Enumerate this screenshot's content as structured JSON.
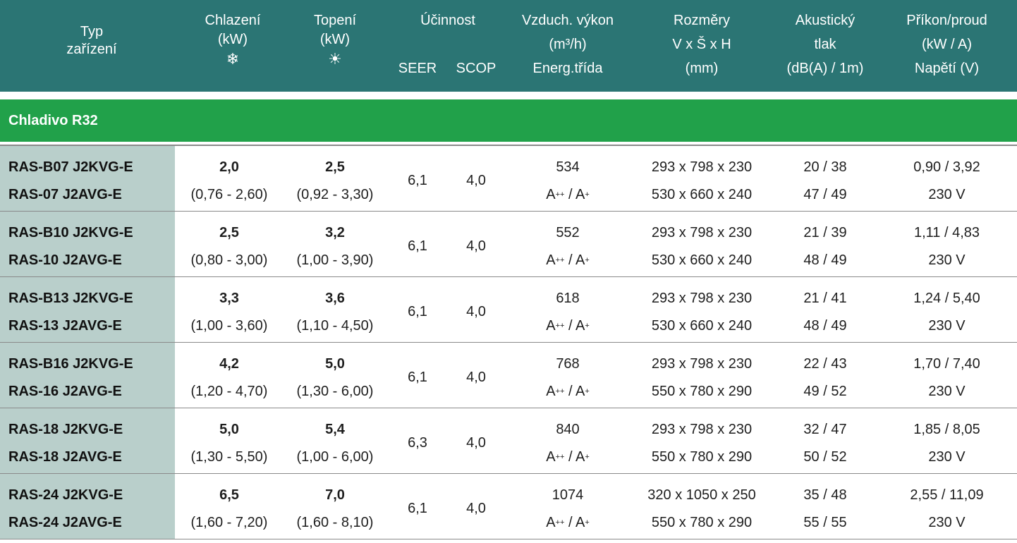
{
  "header": {
    "typ": [
      "Typ",
      "zařízení"
    ],
    "chlazeni": [
      "Chlazení",
      "(kW)"
    ],
    "topeni": [
      "Topení",
      "(kW)"
    ],
    "ucinnost": "Účinnost",
    "seer": "SEER",
    "scop": "SCOP",
    "vzduch": [
      "Vzduch. výkon",
      "(m³/h)",
      "Energ.třída"
    ],
    "rozmery": [
      "Rozměry",
      "V x Š x H",
      "(mm)"
    ],
    "akusticky": [
      "Akustický",
      "tlak",
      "(dB(A) / 1m)"
    ],
    "prikon": [
      "Příkon/proud",
      "(kW / A)",
      "Napětí (V)"
    ],
    "icons": {
      "cooling": "snowflake-icon",
      "heating": "sun-icon"
    }
  },
  "section": {
    "label": "Chladivo R32"
  },
  "energy_class": {
    "a": "A",
    "a_sup": "++",
    "sep": " / ",
    "b": "A",
    "b_sup": "+"
  },
  "colors": {
    "header_bg": "#2b7574",
    "section_bg": "#21a14a",
    "model_stripe": "#b9cfcb"
  },
  "rows": [
    {
      "model_indoor": "RAS-B07 J2KVG-E",
      "model_outdoor": "RAS-07 J2AVG-E",
      "cooling": "2,0",
      "cooling_range": "(0,76 - 2,60)",
      "heating": "2,5",
      "heating_range": "(0,92 - 3,30)",
      "seer": "6,1",
      "scop": "4,0",
      "airflow": "534",
      "dim_indoor": "293 x 798 x 230",
      "dim_outdoor": "530 x 660 x 240",
      "noise_indoor": "20 / 38",
      "noise_outdoor": "47 / 49",
      "power": "0,90 / 3,92",
      "voltage": "230 V"
    },
    {
      "model_indoor": "RAS-B10 J2KVG-E",
      "model_outdoor": "RAS-10 J2AVG-E",
      "cooling": "2,5",
      "cooling_range": "(0,80 - 3,00)",
      "heating": "3,2",
      "heating_range": "(1,00 - 3,90)",
      "seer": "6,1",
      "scop": "4,0",
      "airflow": "552",
      "dim_indoor": "293 x 798 x 230",
      "dim_outdoor": "530 x 660 x 240",
      "noise_indoor": "21 / 39",
      "noise_outdoor": "48 / 49",
      "power": "1,11 / 4,83",
      "voltage": "230 V"
    },
    {
      "model_indoor": "RAS-B13 J2KVG-E",
      "model_outdoor": "RAS-13 J2AVG-E",
      "cooling": "3,3",
      "cooling_range": "(1,00 - 3,60)",
      "heating": "3,6",
      "heating_range": "(1,10 - 4,50)",
      "seer": "6,1",
      "scop": "4,0",
      "airflow": "618",
      "dim_indoor": "293 x 798 x 230",
      "dim_outdoor": "530 x 660 x 240",
      "noise_indoor": "21 / 41",
      "noise_outdoor": "48 / 49",
      "power": "1,24 / 5,40",
      "voltage": "230 V"
    },
    {
      "model_indoor": "RAS-B16 J2KVG-E",
      "model_outdoor": "RAS-16 J2AVG-E",
      "cooling": "4,2",
      "cooling_range": "(1,20 - 4,70)",
      "heating": "5,0",
      "heating_range": "(1,30 - 6,00)",
      "seer": "6,1",
      "scop": "4,0",
      "airflow": "768",
      "dim_indoor": "293 x 798 x 230",
      "dim_outdoor": "550 x 780 x 290",
      "noise_indoor": "22 / 43",
      "noise_outdoor": "49 / 52",
      "power": "1,70 / 7,40",
      "voltage": "230 V"
    },
    {
      "model_indoor": "RAS-18 J2KVG-E",
      "model_outdoor": "RAS-18 J2AVG-E",
      "cooling": "5,0",
      "cooling_range": "(1,30 - 5,50)",
      "heating": "5,4",
      "heating_range": "(1,00 - 6,00)",
      "seer": "6,3",
      "scop": "4,0",
      "airflow": "840",
      "dim_indoor": "293 x 798 x 230",
      "dim_outdoor": "550 x 780 x 290",
      "noise_indoor": "32 / 47",
      "noise_outdoor": "50 / 52",
      "power": "1,85 / 8,05",
      "voltage": "230 V"
    },
    {
      "model_indoor": "RAS-24 J2KVG-E",
      "model_outdoor": "RAS-24 J2AVG-E",
      "cooling": "6,5",
      "cooling_range": "(1,60 - 7,20)",
      "heating": "7,0",
      "heating_range": "(1,60 - 8,10)",
      "seer": "6,1",
      "scop": "4,0",
      "airflow": "1074",
      "dim_indoor": "320 x 1050 x 250",
      "dim_outdoor": "550 x 780 x 290",
      "noise_indoor": "35 / 48",
      "noise_outdoor": "55 / 55",
      "power": "2,55 / 11,09",
      "voltage": "230 V"
    }
  ]
}
